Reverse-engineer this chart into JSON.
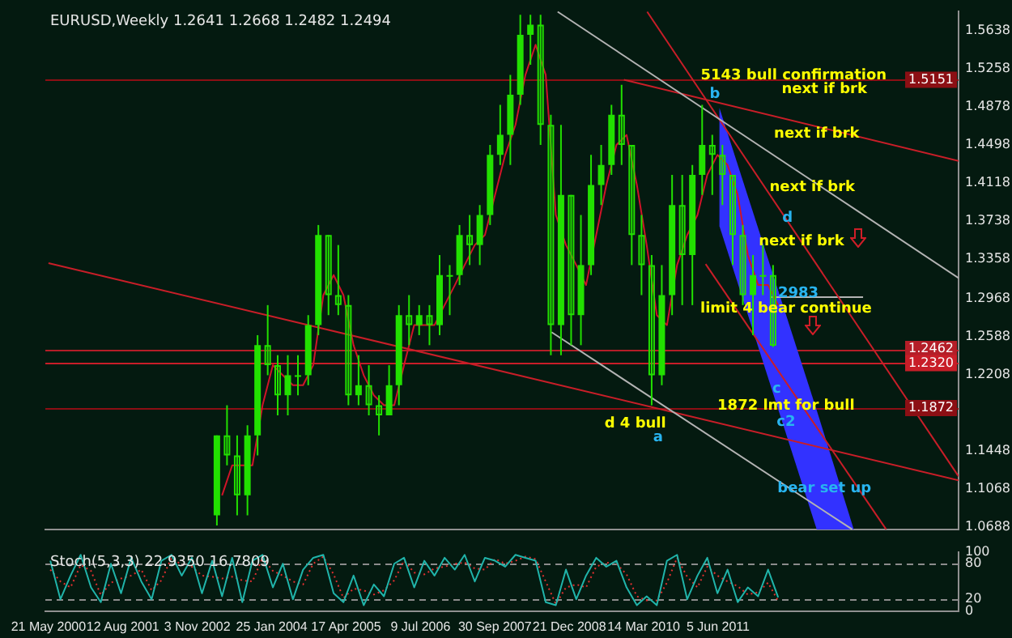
{
  "chart_data": [
    {
      "type": "candlestick",
      "title": "EURUSD,Weekly 1.2641 1.2668 1.2482 1.2494",
      "color": "#22e000",
      "x": [
        "2003-03-01",
        "2003-05-01",
        "2003-07-01",
        "2003-09-01",
        "2003-11-01",
        "2004-01-01",
        "2004-03-01",
        "2004-05-01",
        "2004-07-01",
        "2004-09-01",
        "2004-11-01",
        "2005-01-01",
        "2005-03-01",
        "2005-05-01",
        "2005-07-01",
        "2005-09-01",
        "2005-11-01",
        "2006-01-01",
        "2006-03-01",
        "2006-05-01",
        "2006-07-01",
        "2006-09-01",
        "2006-11-01",
        "2007-01-01",
        "2007-03-01",
        "2007-05-01",
        "2007-07-01",
        "2007-09-01",
        "2007-11-01",
        "2008-01-01",
        "2008-03-01",
        "2008-05-01",
        "2008-07-01",
        "2008-09-01",
        "2008-11-01",
        "2009-01-01",
        "2009-03-01",
        "2009-05-01",
        "2009-07-01",
        "2009-09-01",
        "2009-11-01",
        "2010-01-01",
        "2010-03-01",
        "2010-05-01",
        "2010-07-01",
        "2010-09-01",
        "2010-11-01",
        "2011-01-01",
        "2011-03-01",
        "2011-05-01",
        "2011-07-01",
        "2011-09-01",
        "2011-11-01",
        "2012-01-01",
        "2012-03-01",
        "2012-05-01"
      ],
      "ohlc": [
        [
          1.08,
          1.16,
          1.07,
          1.16
        ],
        [
          1.16,
          1.19,
          1.13,
          1.14
        ],
        [
          1.14,
          1.16,
          1.08,
          1.1
        ],
        [
          1.1,
          1.17,
          1.08,
          1.16
        ],
        [
          1.16,
          1.26,
          1.14,
          1.25
        ],
        [
          1.25,
          1.29,
          1.22,
          1.23
        ],
        [
          1.23,
          1.24,
          1.18,
          1.2
        ],
        [
          1.2,
          1.24,
          1.18,
          1.22
        ],
        [
          1.22,
          1.24,
          1.2,
          1.22
        ],
        [
          1.22,
          1.28,
          1.21,
          1.27
        ],
        [
          1.27,
          1.37,
          1.26,
          1.36
        ],
        [
          1.36,
          1.36,
          1.28,
          1.3
        ],
        [
          1.3,
          1.35,
          1.28,
          1.29
        ],
        [
          1.29,
          1.3,
          1.19,
          1.2
        ],
        [
          1.2,
          1.24,
          1.19,
          1.21
        ],
        [
          1.21,
          1.23,
          1.18,
          1.19
        ],
        [
          1.19,
          1.2,
          1.16,
          1.18
        ],
        [
          1.18,
          1.23,
          1.18,
          1.21
        ],
        [
          1.21,
          1.29,
          1.19,
          1.28
        ],
        [
          1.28,
          1.3,
          1.25,
          1.27
        ],
        [
          1.27,
          1.29,
          1.26,
          1.28
        ],
        [
          1.28,
          1.29,
          1.25,
          1.27
        ],
        [
          1.27,
          1.34,
          1.26,
          1.32
        ],
        [
          1.32,
          1.33,
          1.28,
          1.32
        ],
        [
          1.32,
          1.37,
          1.31,
          1.36
        ],
        [
          1.36,
          1.38,
          1.33,
          1.35
        ],
        [
          1.35,
          1.39,
          1.33,
          1.38
        ],
        [
          1.38,
          1.45,
          1.37,
          1.44
        ],
        [
          1.44,
          1.49,
          1.43,
          1.46
        ],
        [
          1.46,
          1.52,
          1.43,
          1.5
        ],
        [
          1.5,
          1.58,
          1.49,
          1.56
        ],
        [
          1.56,
          1.58,
          1.53,
          1.57
        ],
        [
          1.57,
          1.58,
          1.45,
          1.47
        ],
        [
          1.47,
          1.48,
          1.24,
          1.27
        ],
        [
          1.27,
          1.47,
          1.24,
          1.4
        ],
        [
          1.4,
          1.4,
          1.25,
          1.28
        ],
        [
          1.28,
          1.38,
          1.25,
          1.33
        ],
        [
          1.33,
          1.44,
          1.32,
          1.41
        ],
        [
          1.41,
          1.45,
          1.39,
          1.43
        ],
        [
          1.43,
          1.49,
          1.42,
          1.48
        ],
        [
          1.48,
          1.51,
          1.43,
          1.45
        ],
        [
          1.45,
          1.45,
          1.33,
          1.36
        ],
        [
          1.36,
          1.38,
          1.3,
          1.33
        ],
        [
          1.33,
          1.34,
          1.19,
          1.22
        ],
        [
          1.22,
          1.33,
          1.21,
          1.3
        ],
        [
          1.3,
          1.42,
          1.28,
          1.39
        ],
        [
          1.39,
          1.42,
          1.29,
          1.34
        ],
        [
          1.34,
          1.43,
          1.29,
          1.42
        ],
        [
          1.42,
          1.49,
          1.4,
          1.45
        ],
        [
          1.45,
          1.46,
          1.4,
          1.44
        ],
        [
          1.44,
          1.45,
          1.39,
          1.42
        ],
        [
          1.42,
          1.42,
          1.33,
          1.36
        ],
        [
          1.36,
          1.37,
          1.29,
          1.3
        ],
        [
          1.3,
          1.34,
          1.26,
          1.32
        ],
        [
          1.32,
          1.35,
          1.3,
          1.32
        ],
        [
          1.32,
          1.33,
          1.2482,
          1.2494
        ]
      ],
      "series": [
        {
          "type": "line",
          "color": "#d01428",
          "x": [
            "2003-04-01",
            "2003-06-01",
            "2003-08-01",
            "2003-10-01",
            "2003-12-01",
            "2004-02-01",
            "2004-04-01",
            "2004-06-01",
            "2004-08-01",
            "2004-10-01",
            "2004-12-01",
            "2005-02-01",
            "2005-04-01",
            "2005-06-01",
            "2005-08-01",
            "2005-10-01",
            "2005-12-01",
            "2006-02-01",
            "2006-04-01",
            "2006-06-01",
            "2006-08-01",
            "2006-10-01",
            "2006-12-01",
            "2007-02-01",
            "2007-04-01",
            "2007-06-01",
            "2007-08-01",
            "2007-10-01",
            "2007-12-01",
            "2008-02-01",
            "2008-04-01",
            "2008-06-01",
            "2008-08-01",
            "2008-10-01",
            "2008-12-01",
            "2009-02-01",
            "2009-04-01",
            "2009-06-01",
            "2009-08-01",
            "2009-10-01",
            "2009-12-01",
            "2010-02-01",
            "2010-04-01",
            "2010-06-01",
            "2010-08-01",
            "2010-10-01",
            "2010-12-01",
            "2011-02-01",
            "2011-04-01",
            "2011-06-01",
            "2011-08-01",
            "2011-10-01",
            "2011-12-01",
            "2012-02-01",
            "2012-04-01",
            "2012-06-01"
          ],
          "line_style": "solid",
          "values": [
            1.1,
            1.13,
            1.13,
            1.13,
            1.19,
            1.23,
            1.22,
            1.21,
            1.21,
            1.23,
            1.3,
            1.32,
            1.3,
            1.25,
            1.22,
            1.2,
            1.19,
            1.19,
            1.23,
            1.27,
            1.27,
            1.27,
            1.29,
            1.31,
            1.33,
            1.35,
            1.36,
            1.4,
            1.44,
            1.47,
            1.52,
            1.55,
            1.52,
            1.38,
            1.35,
            1.33,
            1.31,
            1.36,
            1.41,
            1.45,
            1.46,
            1.41,
            1.35,
            1.28,
            1.27,
            1.33,
            1.36,
            1.38,
            1.42,
            1.44,
            1.43,
            1.4,
            1.34,
            1.31,
            1.31,
            1.29
          ]
        },
        {
          "type": "area",
          "color": "#3232ff",
          "x": [
            "2011-06-13",
            "2013-01-19",
            "2013-08-30"
          ],
          "values": [
            null,
            null,
            null
          ],
          "upper": [
            1.487,
            1.185,
            1.066
          ],
          "lower": [
            1.369,
            1.066,
            1.066
          ]
        },
        {
          "type": "line",
          "color": "#b4b4b4",
          "x": [
            "2008-10-12",
            "2015-05-23"
          ],
          "values": [
            1.583,
            1.317
          ]
        },
        {
          "type": "line",
          "color": "#b4b4b4",
          "x": [
            "2008-09-05",
            "2013-08-21"
          ],
          "values": [
            1.263,
            1.066
          ]
        },
        {
          "type": "line",
          "color": "#c81e28",
          "x": [
            "2010-04-04",
            "2015-05-23"
          ],
          "values": [
            1.583,
            1.119
          ]
        },
        {
          "type": "line",
          "color": "#c81e28",
          "x": [
            "2009-11-15",
            "2015-05-23"
          ],
          "values": [
            1.515,
            1.434
          ]
        },
        {
          "type": "line",
          "color": "#c81e28",
          "x": [
            "2000-05-21",
            "2015-05-23"
          ],
          "values": [
            1.332,
            1.115
          ]
        },
        {
          "type": "line",
          "color": "#c81e28",
          "x": [
            "2011-03-22",
            "2014-03-13"
          ],
          "values": [
            1.331,
            1.066
          ]
        },
        {
          "type": "line",
          "color": "#b4b4b4",
          "x": [
            "2012-04-18",
            "2013-10-25"
          ],
          "values": [
            1.298,
            1.298
          ]
        }
      ],
      "xlim": [
        "2000-05-02",
        "2015-05-23"
      ],
      "ylim": [
        1.0656,
        1.5837
      ],
      "yticks": [
        1.5638,
        1.5258,
        1.4878,
        1.4498,
        1.4118,
        1.3738,
        1.3358,
        1.2968,
        1.2588,
        1.2208,
        1.1448,
        1.1068,
        1.0688
      ],
      "ref_lines": [
        {
          "axis": "y",
          "value": 1.5151,
          "label": "1.5151",
          "color": "#8c0f14"
        },
        {
          "axis": "y",
          "value": 1.2462,
          "label": "1.2462",
          "color": "#b41e28"
        },
        {
          "axis": "y",
          "value": 1.232,
          "label": "1.2320",
          "color": "#c81e28"
        },
        {
          "axis": "y",
          "value": 1.1872,
          "label": "1.1872",
          "color": "#8c0f14"
        }
      ],
      "annotations": [
        {
          "text": "5143 bull confirmation",
          "x": "2012-09-02",
          "y": 1.5193
        },
        "next if brk",
        {
          "text": "next if brk",
          "x": "2013-01-19",
          "y": 1.4611
        },
        {
          "text": "next if brk",
          "x": "2012-12-23",
          "y": 1.4074
        },
        {
          "text": "next if brk",
          "x": "2012-10-19",
          "y": 1.3538
        },
        {
          "text": "limit 4 bear continue",
          "x": "2012-07-18",
          "y": 1.2863
        },
        {
          "text": "2983",
          "x": "2012-09-30",
          "y": 1.3017
        },
        {
          "text": "1872 lmt for bull",
          "x": "2012-07-18",
          "y": 1.1897
        },
        "d 4 bull",
        "a",
        {
          "text": "b",
          "x": "2011-05-16",
          "y": 1.5009
        },
        {
          "text": "c",
          "x": "2012-05-23",
          "y": 1.2066
        },
        {
          "text": "c2",
          "x": "2012-07-18",
          "y": 1.1729
        },
        {
          "text": "d",
          "x": "2012-07-27",
          "y": 1.3768
        },
        "bear set up"
      ],
      "tick_labels": "y",
      "grid": false,
      "legend": false
    },
    {
      "type": "line",
      "title": "Stoch(5,3,3) 22.9350 16.7809",
      "x": [
        "2000-06-01",
        "2000-08-01",
        "2000-10-01",
        "2000-12-01",
        "2001-02-01",
        "2001-04-01",
        "2001-06-01",
        "2001-08-01",
        "2001-10-01",
        "2001-12-01",
        "2002-02-01",
        "2002-04-01",
        "2002-06-01",
        "2002-08-01",
        "2002-10-01",
        "2002-12-01",
        "2003-02-01",
        "2003-04-01",
        "2003-06-01",
        "2003-08-01",
        "2003-10-01",
        "2003-12-01",
        "2004-02-01",
        "2004-04-01",
        "2004-06-01",
        "2004-08-01",
        "2004-10-01",
        "2004-12-01",
        "2005-02-01",
        "2005-04-01",
        "2005-06-01",
        "2005-08-01",
        "2005-10-01",
        "2005-12-01",
        "2006-02-01",
        "2006-04-01",
        "2006-06-01",
        "2006-08-01",
        "2006-10-01",
        "2006-12-01",
        "2007-02-01",
        "2007-04-01",
        "2007-06-01",
        "2007-08-01",
        "2007-10-01",
        "2007-12-01",
        "2008-02-01",
        "2008-04-01",
        "2008-06-01",
        "2008-08-01",
        "2008-10-01",
        "2008-12-01",
        "2009-02-01",
        "2009-04-01",
        "2009-06-01",
        "2009-08-01",
        "2009-10-01",
        "2009-12-01",
        "2010-02-01",
        "2010-04-01",
        "2010-06-01",
        "2010-08-01",
        "2010-10-01",
        "2010-12-01",
        "2011-02-01",
        "2011-04-01",
        "2011-06-01",
        "2011-08-01",
        "2011-10-01",
        "2011-12-01",
        "2012-02-01",
        "2012-04-01",
        "2012-06-01"
      ],
      "series": [
        {
          "color": "#20b4aa",
          "line_style": "solid",
          "values": [
            85,
            20,
            60,
            95,
            40,
            15,
            80,
            30,
            90,
            50,
            20,
            85,
            95,
            60,
            90,
            30,
            85,
            25,
            90,
            15,
            85,
            95,
            40,
            80,
            20,
            70,
            90,
            95,
            30,
            15,
            60,
            10,
            45,
            25,
            80,
            90,
            40,
            85,
            60,
            90,
            70,
            95,
            50,
            90,
            85,
            75,
            95,
            90,
            85,
            15,
            10,
            70,
            20,
            60,
            90,
            75,
            85,
            40,
            10,
            25,
            10,
            85,
            95,
            20,
            60,
            90,
            30,
            70,
            15,
            40,
            25,
            70,
            23
          ]
        },
        {
          "color": "#e03030",
          "line_style": "dotted",
          "values": [
            70,
            50,
            40,
            78,
            68,
            27,
            48,
            55,
            60,
            70,
            35,
            52,
            90,
            78,
            75,
            60,
            58,
            55,
            58,
            52,
            50,
            90,
            68,
            60,
            50,
            45,
            80,
            92,
            62,
            22,
            38,
            35,
            28,
            35,
            52,
            85,
            65,
            62,
            72,
            75,
            80,
            82,
            72,
            70,
            88,
            80,
            85,
            92,
            88,
            50,
            12,
            40,
            45,
            40,
            75,
            82,
            80,
            62,
            25,
            18,
            18,
            48,
            90,
            58,
            40,
            75,
            60,
            50,
            42,
            28,
            32,
            48,
            17
          ]
        }
      ],
      "xlim": [
        "2000-05-02",
        "2015-05-23"
      ],
      "ylim": [
        0,
        100
      ],
      "yticks": [
        0,
        20,
        80,
        100
      ],
      "xticks": [
        {
          "value": "2000-05-21",
          "label": "21 May 2000"
        },
        {
          "value": "2001-08-12",
          "label": "12 Aug 2001"
        },
        {
          "value": "2002-11-03",
          "label": "3 Nov 2002"
        },
        {
          "value": "2004-01-25",
          "label": "25 Jan 2004"
        },
        {
          "value": "2005-04-17",
          "label": "17 Apr 2005"
        },
        {
          "value": "2006-07-09",
          "label": "9 Jul 2006"
        },
        {
          "value": "2007-09-30",
          "label": "30 Sep 2007"
        },
        {
          "value": "2008-12-21",
          "label": "21 Dec 2008"
        },
        {
          "value": "2010-03-14",
          "label": "14 Mar 2010"
        },
        {
          "value": "2011-06-05",
          "label": "5 Jun 2011"
        }
      ],
      "ref_lines": [
        {
          "axis": "y",
          "value": 80,
          "color": "#8c8c8c",
          "line_style": "dashed"
        },
        {
          "axis": "y",
          "value": 20,
          "color": "#8c8c8c",
          "line_style": "dashed"
        }
      ],
      "grid": false,
      "legend": false
    }
  ]
}
